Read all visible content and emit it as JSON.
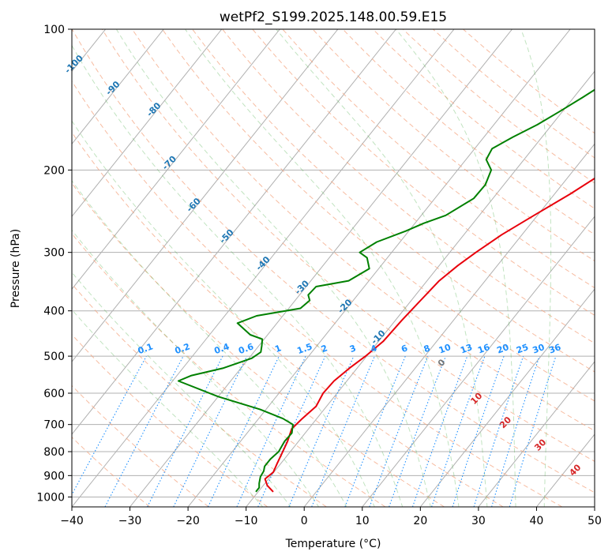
{
  "chart_data": {
    "type": "line",
    "title": "wetPf2_S199.2025.148.00.59.E15",
    "xlabel": "Temperature (°C)",
    "ylabel": "Pressure (hPa)",
    "xlim": [
      -40,
      50
    ],
    "ylim": [
      1050,
      100
    ],
    "y_scale": "log",
    "x_ticks": [
      -40,
      -30,
      -20,
      -10,
      0,
      10,
      20,
      30,
      40,
      50
    ],
    "y_ticks": [
      100,
      200,
      300,
      400,
      500,
      600,
      700,
      800,
      900,
      1000
    ],
    "grid": true,
    "series": [
      {
        "color": "#e8000b",
        "points": [
          [
            -7.4,
            975
          ],
          [
            -9.3,
            945
          ],
          [
            -10.6,
            915
          ],
          [
            -10.1,
            885
          ],
          [
            -10.6,
            850
          ],
          [
            -11.3,
            800
          ],
          [
            -11.9,
            760
          ],
          [
            -12.9,
            715
          ],
          [
            -12.5,
            680
          ],
          [
            -11.8,
            640
          ],
          [
            -12.4,
            600
          ],
          [
            -12.2,
            565
          ],
          [
            -11.3,
            530
          ],
          [
            -10.2,
            500
          ],
          [
            -9.2,
            465
          ],
          [
            -8.9,
            420
          ],
          [
            -8.4,
            380
          ],
          [
            -7.9,
            345
          ],
          [
            -6.8,
            320
          ],
          [
            -5.5,
            300
          ],
          [
            -3.5,
            275
          ],
          [
            -0.6,
            250
          ],
          [
            2.7,
            225
          ],
          [
            5.6,
            202
          ],
          [
            8.4,
            183
          ],
          [
            11.7,
            160
          ],
          [
            14.8,
            142
          ],
          [
            18.3,
            122
          ],
          [
            21.4,
            108
          ],
          [
            23.5,
            100
          ]
        ]
      },
      {
        "color": "#008000",
        "points": [
          [
            -10.4,
            975
          ],
          [
            -10.4,
            955
          ],
          [
            -11.0,
            935
          ],
          [
            -11.7,
            905
          ],
          [
            -11.9,
            880
          ],
          [
            -12.4,
            860
          ],
          [
            -12.4,
            830
          ],
          [
            -12.0,
            800
          ],
          [
            -12.4,
            760
          ],
          [
            -12.3,
            730
          ],
          [
            -13.3,
            700
          ],
          [
            -15.8,
            680
          ],
          [
            -21.0,
            650
          ],
          [
            -30.0,
            610
          ],
          [
            -39.0,
            565
          ],
          [
            -37.5,
            550
          ],
          [
            -33.0,
            530
          ],
          [
            -29.5,
            505
          ],
          [
            -28.8,
            490
          ],
          [
            -29.5,
            475
          ],
          [
            -30.3,
            460
          ],
          [
            -33.0,
            450
          ],
          [
            -36.8,
            425
          ],
          [
            -34.5,
            410
          ],
          [
            -28.0,
            395
          ],
          [
            -27.5,
            380
          ],
          [
            -28.5,
            370
          ],
          [
            -28.3,
            355
          ],
          [
            -23.5,
            345
          ],
          [
            -21.6,
            325
          ],
          [
            -23.5,
            308
          ],
          [
            -25.5,
            300
          ],
          [
            -24.0,
            285
          ],
          [
            -20.5,
            270
          ],
          [
            -18.5,
            260
          ],
          [
            -15.8,
            250
          ],
          [
            -13.3,
            230
          ],
          [
            -13.2,
            215
          ],
          [
            -14.2,
            200
          ],
          [
            -16.5,
            190
          ],
          [
            -17.0,
            180
          ],
          [
            -15.0,
            170
          ],
          [
            -12.5,
            160
          ],
          [
            -10.5,
            150
          ],
          [
            -8.5,
            140
          ],
          [
            -6.5,
            130
          ],
          [
            -4.5,
            120
          ],
          [
            -3.5,
            112
          ],
          [
            -1.5,
            100
          ]
        ]
      }
    ],
    "dry_adiabats": [
      -30,
      -20,
      -10,
      0,
      10,
      20,
      30,
      40,
      50,
      60,
      70,
      80,
      90,
      100,
      110,
      120,
      130,
      140,
      150,
      160,
      170,
      180
    ],
    "moist_adiabats": [
      -10,
      -5,
      0,
      5,
      10,
      15,
      20,
      25,
      30,
      35,
      40
    ],
    "isotherm_labels": [
      -100,
      -90,
      -80,
      -70,
      -60,
      -50,
      -40,
      -30,
      -20,
      -10
    ],
    "mixing_ratio_labels": [
      "0.1",
      "0.2",
      "0.4",
      "0.6",
      "1",
      "1.5",
      "2",
      "3",
      "4",
      "6",
      "8",
      "10",
      "13",
      "16",
      "20",
      "25",
      "30",
      "36"
    ],
    "wet_bulb_labels": [
      "0",
      "10",
      "20",
      "30",
      "40"
    ]
  }
}
